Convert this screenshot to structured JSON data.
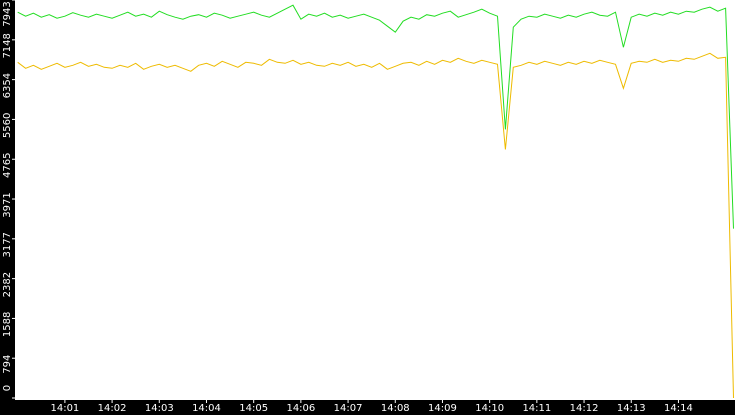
{
  "chart_data": {
    "type": "line",
    "categories": [
      null,
      null,
      null,
      null,
      null,
      null,
      "14:01",
      null,
      null,
      null,
      null,
      null,
      "14:02",
      null,
      null,
      null,
      null,
      null,
      "14:03",
      null,
      null,
      null,
      null,
      null,
      "14:04",
      null,
      null,
      null,
      null,
      null,
      "14:05",
      null,
      null,
      null,
      null,
      null,
      "14:06",
      null,
      null,
      null,
      null,
      null,
      "14:07",
      null,
      null,
      null,
      null,
      null,
      "14:08",
      null,
      null,
      null,
      null,
      null,
      "14:09",
      null,
      null,
      null,
      null,
      null,
      "14:10",
      null,
      null,
      null,
      null,
      null,
      "14:11",
      null,
      null,
      null,
      null,
      null,
      "14:12",
      null,
      null,
      null,
      null,
      null,
      "14:13",
      null,
      null,
      null,
      null,
      null,
      "14:14",
      null,
      null,
      null,
      null,
      null,
      null,
      null
    ],
    "series": [
      {
        "color": "#22dd22",
        "values": [
          7700,
          7620,
          7680,
          7600,
          7650,
          7580,
          7620,
          7690,
          7640,
          7600,
          7660,
          7620,
          7580,
          7640,
          7700,
          7620,
          7660,
          7600,
          7720,
          7650,
          7600,
          7560,
          7620,
          7650,
          7600,
          7680,
          7640,
          7580,
          7620,
          7660,
          7700,
          7640,
          7600,
          7680,
          7760,
          7840,
          7560,
          7660,
          7620,
          7680,
          7600,
          7640,
          7580,
          7620,
          7660,
          7600,
          7540,
          7420,
          7300,
          7520,
          7600,
          7560,
          7650,
          7620,
          7680,
          7720,
          7600,
          7650,
          7700,
          7760,
          7680,
          7620,
          5360,
          7400,
          7560,
          7620,
          7600,
          7660,
          7620,
          7580,
          7640,
          7600,
          7660,
          7700,
          7640,
          7620,
          7700,
          7000,
          7600,
          7660,
          7620,
          7680,
          7640,
          7700,
          7660,
          7720,
          7700,
          7760,
          7800,
          7720,
          7780,
          3380
        ]
      },
      {
        "color": "#eebb00",
        "values": [
          6700,
          6580,
          6640,
          6560,
          6620,
          6680,
          6600,
          6640,
          6700,
          6620,
          6660,
          6600,
          6580,
          6640,
          6600,
          6680,
          6560,
          6620,
          6660,
          6600,
          6640,
          6580,
          6520,
          6640,
          6680,
          6620,
          6720,
          6660,
          6600,
          6700,
          6680,
          6640,
          6760,
          6700,
          6680,
          6740,
          6660,
          6700,
          6640,
          6620,
          6680,
          6640,
          6700,
          6620,
          6660,
          6600,
          6680,
          6560,
          6620,
          6680,
          6700,
          6640,
          6720,
          6660,
          6740,
          6700,
          6780,
          6720,
          6680,
          6740,
          6700,
          6660,
          4960,
          6600,
          6640,
          6700,
          6660,
          6720,
          6680,
          6640,
          6700,
          6660,
          6720,
          6680,
          6740,
          6700,
          6660,
          6180,
          6680,
          6720,
          6700,
          6760,
          6700,
          6740,
          6720,
          6780,
          6760,
          6820,
          6880,
          6780,
          6800,
          0
        ]
      }
    ],
    "ylim": [
      0,
      7943
    ],
    "yticks": [
      0,
      794,
      1588,
      2382,
      3177,
      3971,
      4765,
      5560,
      6354,
      7148,
      7943
    ]
  }
}
